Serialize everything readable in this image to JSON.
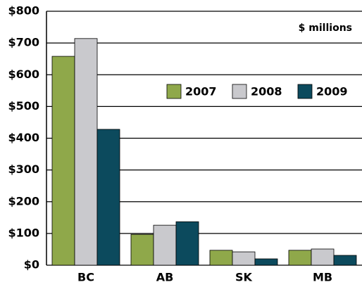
{
  "chart_data": {
    "type": "bar",
    "annotation": "$ millions",
    "categories": [
      "BC",
      "AB",
      "SK",
      "MB"
    ],
    "series": [
      {
        "name": "2007",
        "color": "#8fa84a",
        "values": [
          658,
          97,
          47,
          47
        ]
      },
      {
        "name": "2008",
        "color": "#c9c9cd",
        "values": [
          714,
          126,
          42,
          51
        ]
      },
      {
        "name": "2009",
        "color": "#0c4a5d",
        "values": [
          428,
          137,
          20,
          31
        ]
      }
    ],
    "ylim": [
      0,
      800
    ],
    "yticks": [
      {
        "value": 0,
        "label": "$0"
      },
      {
        "value": 100,
        "label": "$100"
      },
      {
        "value": 200,
        "label": "$200"
      },
      {
        "value": 300,
        "label": "$300"
      },
      {
        "value": 400,
        "label": "$400"
      },
      {
        "value": 500,
        "label": "$500"
      },
      {
        "value": 600,
        "label": "$600"
      },
      {
        "value": 700,
        "label": "$700"
      },
      {
        "value": 800,
        "label": "$800"
      }
    ],
    "grid": true,
    "legend": "upper right"
  }
}
